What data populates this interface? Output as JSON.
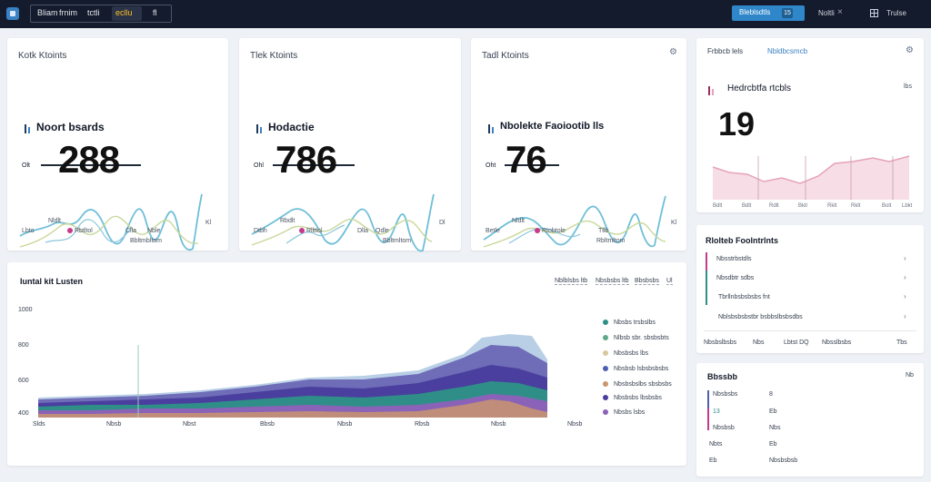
{
  "topbar": {
    "nav_items": [
      "Bliam",
      "frnim",
      "tctli",
      "ecllu",
      "fl"
    ],
    "primary_button": "Bleblsdtls",
    "primary_badge": "15",
    "user_label": "Noltli",
    "close_label": "×",
    "help_label": "Trulse"
  },
  "kpi_cards": [
    {
      "title": "Kotk Ktoints",
      "subtitle": "Noort bsards",
      "chip": "Olt",
      "value": "288",
      "foot_top": "Nldlt",
      "foot_left": "Lbto",
      "legend": [
        "Rbtltol",
        "Clla",
        "Nble"
      ],
      "foot_right": "Bbltmbltom",
      "foot_corner": "Kl",
      "spark_colors": [
        "#6fbfd8",
        "#8ac6da",
        "#c9d89a"
      ]
    },
    {
      "title": "Tlek Ktoints",
      "subtitle": "Hodactie",
      "chip": "Ohl",
      "value": "786",
      "foot_top": "Rbdlt",
      "foot_left": "Dtbh",
      "legend": [
        "Rllttol",
        "Dlla",
        "Qdle"
      ],
      "foot_right": "Bbltmltom",
      "foot_corner": "Dl",
      "spark_colors": [
        "#6fbfd8",
        "#8ac6da",
        "#c9d89a"
      ]
    },
    {
      "title": "Tadl Ktoints",
      "subtitle": "Nbolekte Faoiootib lls",
      "chip": "Oht",
      "value": "76",
      "foot_top": "Nldlt",
      "foot_left": "Betle",
      "legend": [
        "Rtobtole",
        "Tllb"
      ],
      "foot_right": "Rbltmltom",
      "foot_corner": "Kl",
      "spark_colors": [
        "#6fbfd8",
        "#8ac6da",
        "#c9d89a"
      ]
    }
  ],
  "pink_card": {
    "title": "Frbbcb lels",
    "title_link": "Nbldbcsmcb",
    "subtitle": "Hedrcbtfa rtcbls",
    "value": "19",
    "badge": "lbs",
    "axis_labels": [
      "Bdlt",
      "Bdlt",
      "Rdlt",
      "Bklt",
      "Rklt",
      "Rklt",
      "Bolt",
      "Lbkt"
    ],
    "fill_color": "#f6dde6",
    "line_color": "#e6a3b8"
  },
  "list_panel": {
    "title": "Rlolteb Foolntrlnts",
    "items": [
      "Nbsstrbstdls",
      "Nbsdbtr sdbs",
      "Tbrllnbsbsbsbs fnt",
      "Nblsbsbsbstbr bsbbslbsbsdbs"
    ],
    "footer": [
      "Nbsbslbsbs",
      "Nbs",
      "Lbtst DQ",
      "Nbsslbsbs",
      "Tbs"
    ]
  },
  "stat_panel": {
    "title": "Bbssbb",
    "corner": "Nb",
    "rows": [
      {
        "label": "Nbsbsbs",
        "value": "8"
      },
      {
        "label": "13",
        "value": "Eb"
      },
      {
        "label": "Nbsbsb",
        "value": "Nbs"
      },
      {
        "label": "Nbts",
        "value": "Eb"
      },
      {
        "label": "Eb",
        "value": "Nbsbsbsb"
      }
    ]
  },
  "area_panel": {
    "title": "Iuntal kit Lusten",
    "filters": [
      "Nblblsbs ltb",
      "Nbsbsbs ltb",
      "Bbsbsbs",
      "Ul"
    ],
    "y_ticks": [
      "1000",
      "800",
      "600",
      "400"
    ],
    "x_ticks": [
      "Slds",
      "Nbsb",
      "Nbst",
      "Bbsb",
      "Nbsb",
      "Rbsb",
      "Nbsb",
      "Nbsb"
    ],
    "legend": [
      {
        "label": "Nbsbs trsbslbs",
        "color": "#2f8f88"
      },
      {
        "label": "Nlbsb sbr. sbsbsbts",
        "color": "#5ea98a"
      },
      {
        "label": "Nbsbsbs lbs",
        "color": "#d9c7a0"
      },
      {
        "label": "Nbsbsb lsbsbsbsbs",
        "color": "#4f5fb0"
      },
      {
        "label": "Nbsbsbslbs sbsbsbs",
        "color": "#c9956f"
      },
      {
        "label": "Nbsbsbs lbsbsbs",
        "color": "#4a3f9e"
      },
      {
        "label": "Nbsbs lsbs",
        "color": "#8a62b8"
      }
    ]
  }
}
